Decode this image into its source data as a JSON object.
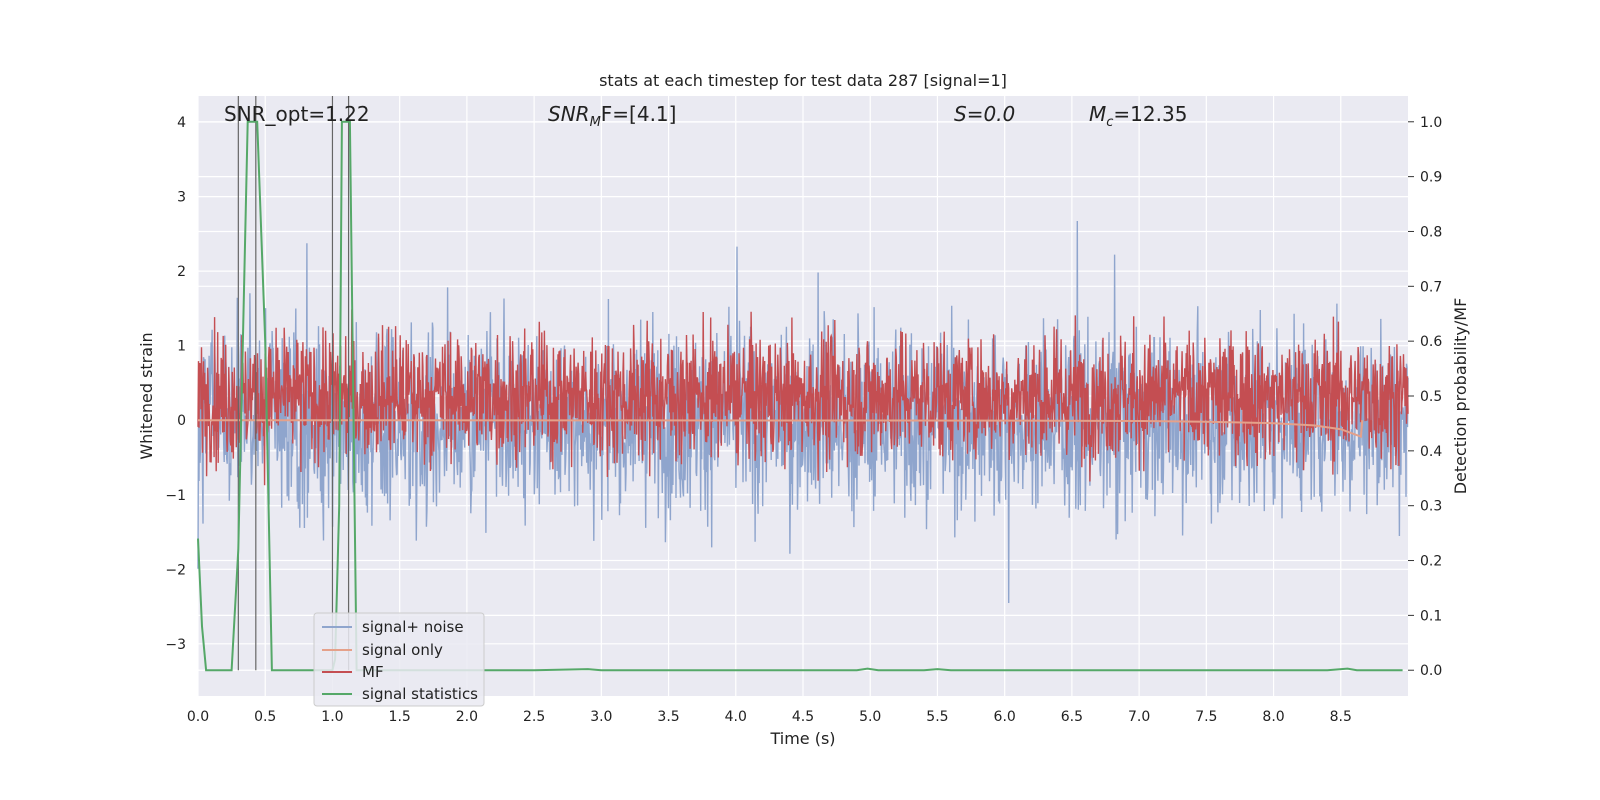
{
  "chart_data": {
    "type": "line",
    "title": "stats at each timestep for test data 287 [signal=1]",
    "xlabel": "Time (s)",
    "ylabel_left": "Whitened strain",
    "ylabel_right": "Detection probability/MF",
    "xlim": [
      0.0,
      9.0
    ],
    "ylim_left": [
      -3.7,
      4.35
    ],
    "ylim_right": [
      -0.047,
      1.047
    ],
    "x_ticks": [
      "0.0",
      "0.5",
      "1.0",
      "1.5",
      "2.0",
      "2.5",
      "3.0",
      "3.5",
      "4.0",
      "4.5",
      "5.0",
      "5.5",
      "6.0",
      "6.5",
      "7.0",
      "7.5",
      "8.0",
      "8.5"
    ],
    "x_tick_values": [
      0.0,
      0.5,
      1.0,
      1.5,
      2.0,
      2.5,
      3.0,
      3.5,
      4.0,
      4.5,
      5.0,
      5.5,
      6.0,
      6.5,
      7.0,
      7.5,
      8.0,
      8.5
    ],
    "y_left_ticks": [
      "−3",
      "−2",
      "−1",
      "0",
      "1",
      "2",
      "3",
      "4"
    ],
    "y_left_tick_values": [
      -3,
      -2,
      -1,
      0,
      1,
      2,
      3,
      4
    ],
    "y_right_ticks": [
      "0.0",
      "0.1",
      "0.2",
      "0.3",
      "0.4",
      "0.5",
      "0.6",
      "0.7",
      "0.8",
      "0.9",
      "1.0"
    ],
    "y_right_tick_values": [
      0.0,
      0.1,
      0.2,
      0.3,
      0.4,
      0.5,
      0.6,
      0.7,
      0.8,
      0.9,
      1.0
    ],
    "grid": true,
    "legend_position": "lower-left",
    "annotations": {
      "snr_opt": "SNR_opt=1.22",
      "snr_mf": "SNR",
      "snr_mf_sub": "M",
      "snr_mf_rest": "F=[4.1]",
      "s_value": "S=0.0",
      "mc_value": "M",
      "mc_sub": "c",
      "mc_rest": "=12.35"
    },
    "series": [
      {
        "name": "signal+ noise",
        "color": "#8fa5cd",
        "axis": "left",
        "description": "whitened noisy strain, roughly -2.5 to 2.5 with spikes",
        "envelope": [
          -2.2,
          2.2
        ],
        "noise_seed": 287
      },
      {
        "name": "signal only",
        "color": "#e5a18a",
        "axis": "left",
        "description": "chirp signal near zero, growing to about -0.2 near t=8.65 s",
        "x": [
          0.0,
          6.0,
          7.0,
          7.5,
          8.0,
          8.3,
          8.5,
          8.65,
          8.66
        ],
        "y": [
          0.0,
          -0.005,
          -0.01,
          -0.02,
          -0.04,
          -0.07,
          -0.12,
          -0.22,
          0.0
        ]
      },
      {
        "name": "MF",
        "color": "#c44e52",
        "axis": "right",
        "description": "matched filter output around 0.5",
        "center": 0.5,
        "spread": 0.09
      },
      {
        "name": "signal statistics",
        "color": "#55a868",
        "axis": "right",
        "x": [
          0.0,
          0.03,
          0.06,
          0.25,
          0.3,
          0.37,
          0.4,
          0.44,
          0.5,
          0.55,
          1.0,
          1.02,
          1.05,
          1.07,
          1.1,
          1.13,
          1.18,
          2.5,
          2.9,
          3.0,
          4.9,
          4.98,
          5.06,
          5.4,
          5.5,
          5.6,
          8.4,
          8.55,
          8.62,
          8.96
        ],
        "y": [
          0.24,
          0.08,
          0.0,
          0.0,
          0.22,
          1.0,
          1.0,
          1.0,
          0.6,
          0.0,
          0.0,
          0.02,
          0.3,
          1.0,
          1.0,
          1.0,
          0.0,
          0.0,
          0.002,
          0.0,
          0.0,
          0.003,
          0.0,
          0.0,
          0.002,
          0.0,
          0.0,
          0.003,
          0.0,
          0.0
        ]
      }
    ],
    "vertical_markers": [
      0.3,
      0.43,
      1.0,
      1.12
    ],
    "vertical_marker_color": "#666666"
  }
}
